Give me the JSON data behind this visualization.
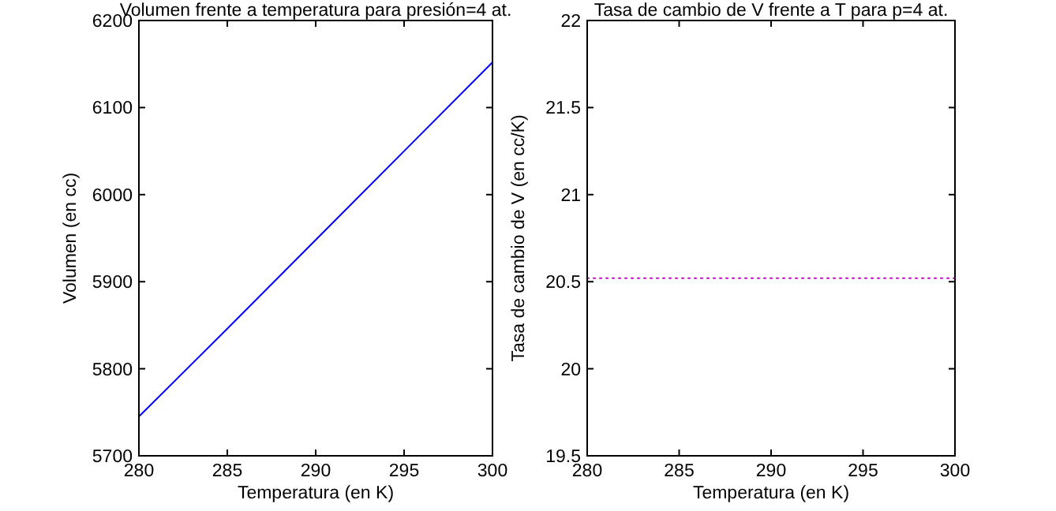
{
  "chart_data": [
    {
      "type": "line",
      "title": "Volumen frente a temperatura para presión=4 at.",
      "xlabel": "Temperatura (en K)",
      "ylabel": "Volumen (en cc)",
      "x": [
        280,
        285,
        290,
        295,
        300
      ],
      "series": [
        {
          "color": "#0000ff",
          "values": [
            5745,
            5846,
            5948,
            6050,
            6152
          ]
        }
      ],
      "xlim": [
        280,
        300
      ],
      "xticks": [
        280,
        285,
        290,
        295,
        300
      ],
      "ylim": [
        5700,
        6200
      ],
      "yticks": [
        5700,
        5800,
        5900,
        6000,
        6100,
        6200
      ],
      "grid": false,
      "line_style": "solid"
    },
    {
      "type": "line",
      "title": "Tasa de cambio de V frente a T para p=4 at.",
      "xlabel": "Temperatura (en K)",
      "ylabel": "Tasa de cambio de V (en cc/K)",
      "x": [
        280,
        285,
        290,
        295,
        300
      ],
      "series": [
        {
          "color": "#cc00cc",
          "values": [
            20.52,
            20.52,
            20.52,
            20.52,
            20.52
          ]
        }
      ],
      "xlim": [
        280,
        300
      ],
      "xticks": [
        280,
        285,
        290,
        295,
        300
      ],
      "ylim": [
        19.5,
        22
      ],
      "yticks": [
        19.5,
        20,
        20.5,
        21,
        21.5,
        22
      ],
      "grid": false,
      "line_style": "dotted"
    }
  ]
}
